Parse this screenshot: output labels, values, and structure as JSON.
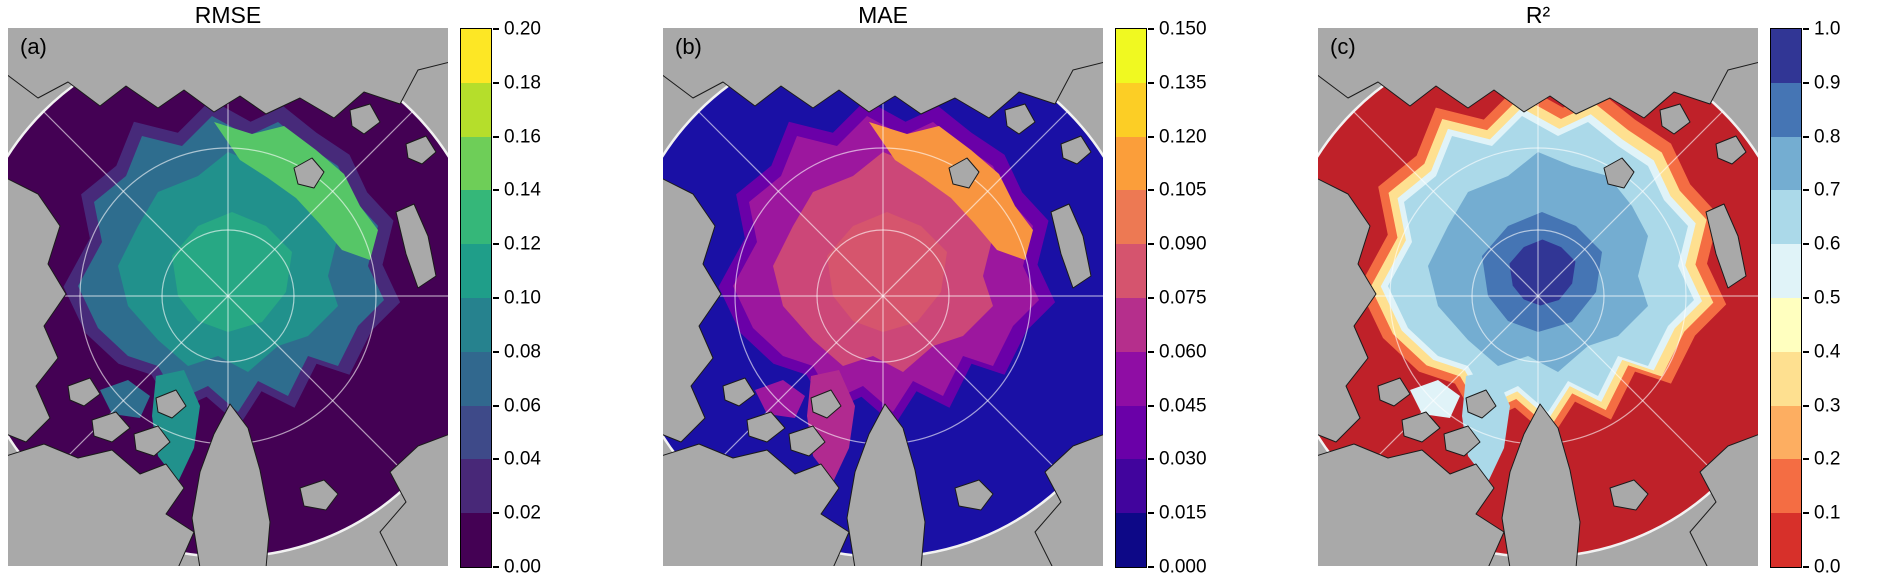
{
  "colors": {
    "land": "#a9a9a9",
    "coast": "#1b1b1b",
    "graticule": "#ffffff",
    "boundary": "#f2f2f2",
    "background": "#ffffff"
  },
  "panels": [
    {
      "label": "(a)",
      "title": "RMSE",
      "map": {
        "ocean": "#440154",
        "halo": "#472a7a",
        "outer": "#2e6d8e",
        "mid": "#21918c",
        "core": "#27a884",
        "accent": "#56c667",
        "tail1": "#21918c",
        "tail2": "#2e6d8e"
      },
      "colorbar": {
        "colors": [
          "#fde725",
          "#b5de2b",
          "#6ece58",
          "#35b779",
          "#1f9e89",
          "#26828e",
          "#31688e",
          "#3e4a89",
          "#482878",
          "#440154"
        ],
        "tick_labels": [
          "0.20",
          "0.18",
          "0.16",
          "0.14",
          "0.12",
          "0.10",
          "0.08",
          "0.06",
          "0.04",
          "0.02",
          "0.00"
        ]
      }
    },
    {
      "label": "(b)",
      "title": "MAE",
      "map": {
        "ocean": "#1a10a5",
        "halo": "#6a00a8",
        "outer": "#9c179e",
        "mid": "#cc4778",
        "core": "#d6556d",
        "accent": "#f89540",
        "tail1": "#b12a90",
        "tail2": "#9c179e"
      },
      "colorbar": {
        "colors": [
          "#f0f921",
          "#fcce25",
          "#fb9e3a",
          "#ed7953",
          "#d5546e",
          "#b52f8c",
          "#8f0da4",
          "#6a00a8",
          "#41049d",
          "#0d0887"
        ],
        "tick_labels": [
          "0.150",
          "0.135",
          "0.120",
          "0.105",
          "0.090",
          "0.075",
          "0.060",
          "0.045",
          "0.030",
          "0.015",
          "0.000"
        ]
      }
    },
    {
      "label": "(c)",
      "title": "R²",
      "map": {
        "ocean": "#bf2129",
        "ring_outer": "#f46d43",
        "ring_mid": "#fee090",
        "ring_inner": "#e0f3f8",
        "outer": "#abd9e9",
        "mid": "#74add1",
        "core": "#4575b4",
        "core2": "#313695",
        "tail1": "#abd9e9",
        "tail2": "#e0f3f8"
      },
      "colorbar": {
        "colors": [
          "#313695",
          "#4575b4",
          "#74add1",
          "#abd9e9",
          "#e0f3f8",
          "#ffffbf",
          "#fee090",
          "#fdae61",
          "#f46d43",
          "#d7302a"
        ],
        "tick_labels": [
          "1.0",
          "0.9",
          "0.8",
          "0.7",
          "0.6",
          "0.5",
          "0.4",
          "0.3",
          "0.2",
          "0.1",
          "0.0"
        ]
      }
    }
  ],
  "chart_data": [
    {
      "type": "heatmap",
      "panel": "(a)",
      "title": "RMSE",
      "projection": "North-polar stereographic map of the Arctic Ocean; gray = land, graticule circles and meridians in white",
      "colormap": "viridis",
      "value_range": [
        0.0,
        0.2
      ],
      "colorbar_ticks": [
        0.0,
        0.02,
        0.04,
        0.06,
        0.08,
        0.1,
        0.12,
        0.14,
        0.16,
        0.18,
        0.2
      ],
      "regional_values": [
        {
          "region": "ice-free open ocean (outer domain)",
          "approx_value": 0.005
        },
        {
          "region": "seasonal halo around the ice pack",
          "approx_value": 0.03
        },
        {
          "region": "outer Arctic ice pack",
          "approx_value": 0.07
        },
        {
          "region": "interior / central Arctic ice pack",
          "approx_value": 0.1
        },
        {
          "region": "ice edge, Barents-Kara sector (maximum band)",
          "approx_value": 0.15
        }
      ]
    },
    {
      "type": "heatmap",
      "panel": "(b)",
      "title": "MAE",
      "projection": "North-polar stereographic map of the Arctic Ocean; gray = land, graticule circles and meridians in white",
      "colormap": "plasma",
      "value_range": [
        0.0,
        0.15
      ],
      "colorbar_ticks": [
        0.0,
        0.015,
        0.03,
        0.045,
        0.06,
        0.075,
        0.09,
        0.105,
        0.12,
        0.135,
        0.15
      ],
      "regional_values": [
        {
          "region": "ice-free open ocean (outer domain)",
          "approx_value": 0.003
        },
        {
          "region": "seasonal halo around the ice pack",
          "approx_value": 0.02
        },
        {
          "region": "outer Arctic ice pack",
          "approx_value": 0.055
        },
        {
          "region": "interior / central Arctic ice pack",
          "approx_value": 0.075
        },
        {
          "region": "ice edge, Barents-Kara sector (maximum band)",
          "approx_value": 0.11
        }
      ]
    },
    {
      "type": "heatmap",
      "panel": "(c)",
      "title": "R²",
      "projection": "North-polar stereographic map of the Arctic Ocean; gray = land, graticule circles and meridians in white",
      "colormap": "RdYlBu (red = low, dark blue = high)",
      "value_range": [
        0.0,
        1.0
      ],
      "colorbar_ticks": [
        0.0,
        0.1,
        0.2,
        0.3,
        0.4,
        0.5,
        0.6,
        0.7,
        0.8,
        0.9,
        1.0
      ],
      "regional_values": [
        {
          "region": "ice-free open ocean (outer domain)",
          "approx_value": 0.05
        },
        {
          "region": "transition ring at the ice edge",
          "approx_value": 0.5
        },
        {
          "region": "outer ice pack",
          "approx_value": 0.75
        },
        {
          "region": "interior Arctic ice pack",
          "approx_value": 0.85
        },
        {
          "region": "central Arctic core patches",
          "approx_value": 0.95
        }
      ]
    }
  ]
}
